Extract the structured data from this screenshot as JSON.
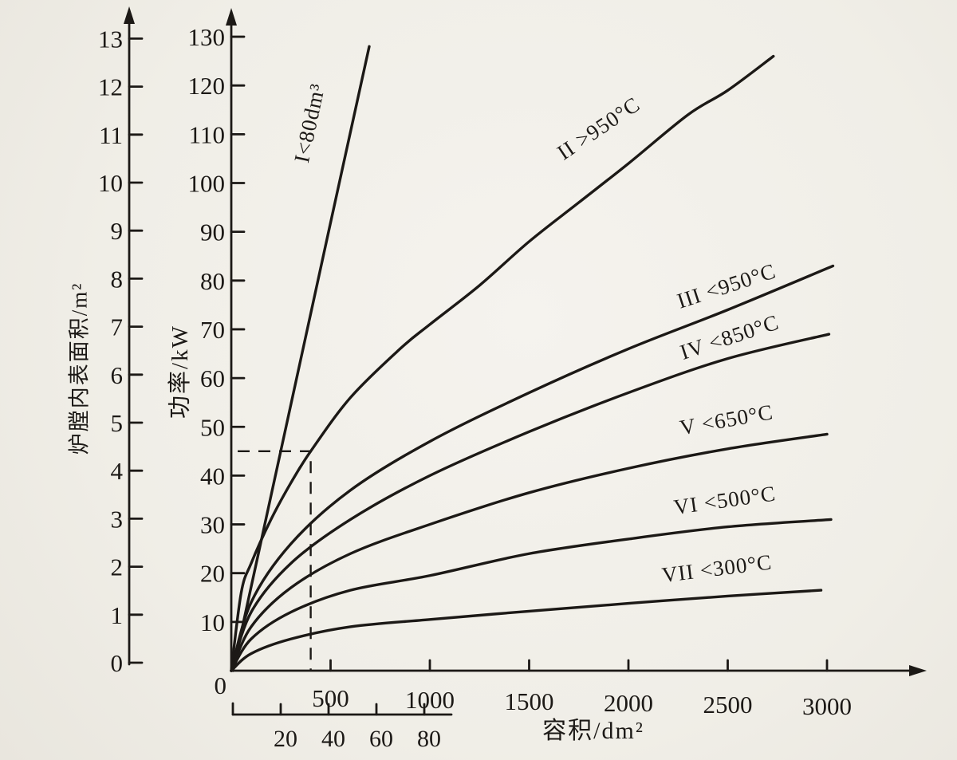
{
  "figure": {
    "paper_color": "#f1efe9",
    "ink_color": "#1c1916",
    "description": "Scanned book figure: furnace power vs chamber volume curves"
  },
  "chart_data": {
    "type": "line",
    "title": "",
    "grid": false,
    "legend_position": "labels-on-curves",
    "x_axis_main": {
      "label": "容积/dm²",
      "ticks": [
        500,
        1000,
        1500,
        2000,
        2500,
        3000
      ],
      "range": [
        0,
        3450
      ],
      "origin_label": "0"
    },
    "x_axis_secondary": {
      "ticks": [
        20,
        40,
        60,
        80
      ],
      "range": [
        0,
        91
      ],
      "applies_to": "curve I (small volume scale)"
    },
    "y_axis_power": {
      "label": "功率/kW",
      "ticks": [
        10,
        20,
        30,
        40,
        50,
        60,
        70,
        80,
        90,
        100,
        110,
        120,
        130
      ],
      "range": [
        0,
        135
      ]
    },
    "y_axis_area": {
      "label": "炉膛内表面积/m²",
      "ticks": [
        0,
        1,
        2,
        3,
        4,
        5,
        6,
        7,
        8,
        9,
        10,
        11,
        12,
        13
      ],
      "range": [
        0,
        13.5
      ]
    },
    "series": [
      {
        "id": "I",
        "label": "I<80dm³",
        "x_scale": "secondary",
        "points": [
          [
            0,
            0
          ],
          [
            20,
            45
          ],
          [
            40,
            90
          ],
          [
            57,
            128
          ]
        ],
        "label_pos": {
          "v": 35,
          "kw": 112
        },
        "label_angle_deg": -78
      },
      {
        "id": "II",
        "label": "II >950°C",
        "x_scale": "main",
        "points": [
          [
            0,
            0
          ],
          [
            50,
            16
          ],
          [
            100,
            22
          ],
          [
            200,
            31
          ],
          [
            300,
            38.5
          ],
          [
            400,
            45
          ],
          [
            600,
            56
          ],
          [
            850,
            66
          ],
          [
            1000,
            71
          ],
          [
            1250,
            79
          ],
          [
            1500,
            88
          ],
          [
            1750,
            96
          ],
          [
            2000,
            104
          ],
          [
            2300,
            114
          ],
          [
            2500,
            119
          ],
          [
            2730,
            126
          ]
        ],
        "label_pos": {
          "v": 1870,
          "kw": 110
        },
        "label_angle_deg": -34
      },
      {
        "id": "III",
        "label": "III <950°C",
        "x_scale": "main",
        "points": [
          [
            0,
            0
          ],
          [
            100,
            14
          ],
          [
            300,
            26
          ],
          [
            600,
            37
          ],
          [
            1000,
            47
          ],
          [
            1500,
            57
          ],
          [
            2000,
            66
          ],
          [
            2500,
            74
          ],
          [
            3030,
            83
          ]
        ],
        "label_pos": {
          "v": 2505,
          "kw": 77.5
        },
        "label_angle_deg": -18
      },
      {
        "id": "IV",
        "label": "IV <850°C",
        "x_scale": "main",
        "points": [
          [
            0,
            0
          ],
          [
            100,
            12
          ],
          [
            300,
            22
          ],
          [
            600,
            31
          ],
          [
            1000,
            40
          ],
          [
            1500,
            49
          ],
          [
            2000,
            57
          ],
          [
            2500,
            64
          ],
          [
            3010,
            69
          ]
        ],
        "label_pos": {
          "v": 2520,
          "kw": 67
        },
        "label_angle_deg": -18
      },
      {
        "id": "V",
        "label": "V <650°C",
        "x_scale": "main",
        "points": [
          [
            0,
            0
          ],
          [
            100,
            9
          ],
          [
            300,
            17
          ],
          [
            600,
            24
          ],
          [
            1000,
            30
          ],
          [
            1500,
            36.5
          ],
          [
            2000,
            41.5
          ],
          [
            2500,
            45.5
          ],
          [
            3000,
            48.5
          ]
        ],
        "label_pos": {
          "v": 2500,
          "kw": 50
        },
        "label_angle_deg": -10
      },
      {
        "id": "VI",
        "label": "VI <500°C",
        "x_scale": "main",
        "points": [
          [
            0,
            0
          ],
          [
            100,
            6.5
          ],
          [
            300,
            12
          ],
          [
            600,
            16.5
          ],
          [
            1000,
            19.5
          ],
          [
            1500,
            24
          ],
          [
            2000,
            27
          ],
          [
            2500,
            29.5
          ],
          [
            3020,
            31
          ]
        ],
        "label_pos": {
          "v": 2490,
          "kw": 33.5
        },
        "label_angle_deg": -8
      },
      {
        "id": "VII",
        "label": "VII <300°C",
        "x_scale": "main",
        "points": [
          [
            0,
            0
          ],
          [
            100,
            3.5
          ],
          [
            300,
            6.5
          ],
          [
            600,
            9
          ],
          [
            1000,
            10.5
          ],
          [
            1500,
            12.2
          ],
          [
            2000,
            13.8
          ],
          [
            2500,
            15.3
          ],
          [
            2970,
            16.5
          ]
        ],
        "label_pos": {
          "v": 2450,
          "kw": 19.5
        },
        "label_angle_deg": -7
      }
    ],
    "guide_lines": {
      "style": "dashed",
      "volume_dm3": 400,
      "power_kw": 45,
      "meets_curve": "II"
    }
  }
}
